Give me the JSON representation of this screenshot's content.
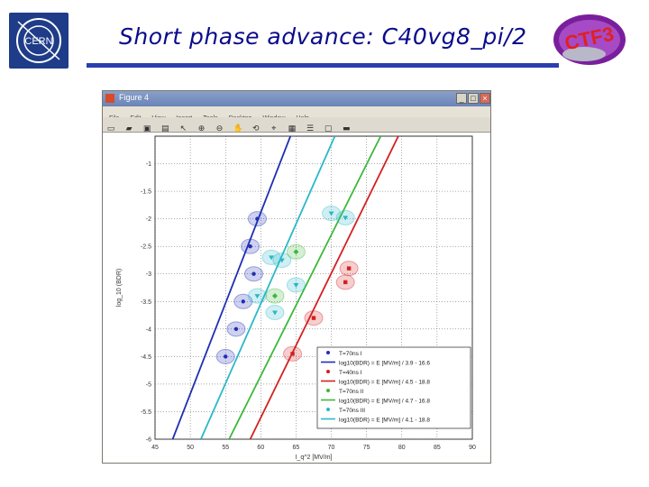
{
  "slide": {
    "title": "Short phase advance: C40vg8_pi/2",
    "cern_logo_text": "CERN",
    "ctf_logo_text": "CTF3"
  },
  "window": {
    "title": "Figure 4",
    "buttons": [
      "_",
      "□",
      "×"
    ],
    "menu": [
      "File",
      "Edit",
      "View",
      "Insert",
      "Tools",
      "Desktop",
      "Window",
      "Help"
    ],
    "toolbar_icons": [
      "new-file-icon",
      "open-icon",
      "save-icon",
      "print-icon",
      "arrow-icon",
      "zoom-in-icon",
      "zoom-out-icon",
      "pan-icon",
      "rotate-icon",
      "data-cursor-icon",
      "colorbar-icon",
      "legend-icon",
      "hide-icon",
      "show-icon"
    ]
  },
  "chart_data": {
    "type": "scatter",
    "xlabel": "I_q^2 [MV/m]",
    "ylabel": "log_10 (BDR)",
    "x_ticks": [
      "45",
      "50",
      "55",
      "60",
      "65",
      "70",
      "75",
      "80",
      "85",
      "90"
    ],
    "y_ticks": [
      "-1",
      "-1.5",
      "-2",
      "-2.5",
      "-3",
      "-3.5",
      "-4",
      "-4.5",
      "-5",
      "-5.5",
      "-6"
    ],
    "xlim": [
      45,
      90
    ],
    "ylim": [
      -6,
      -0.5
    ],
    "series": [
      {
        "name": "T=70ns I",
        "color": "#1f2fb4",
        "marker": "circle",
        "x": [
          59.5,
          58.5,
          59,
          57.5,
          56.5,
          55
        ],
        "y": [
          -2.0,
          -2.5,
          -3.0,
          -3.5,
          -4.0,
          -4.5
        ]
      },
      {
        "name": "log10(BDR) = E [MV/m] / 3.9 - 16.6",
        "color": "#1f2fb4",
        "line": [
          [
            47.5,
            -6.0
          ],
          [
            64.2,
            -0.5
          ]
        ]
      },
      {
        "name": "T=40ns I",
        "color": "#d42020",
        "marker": "square",
        "x": [
          72.5,
          72,
          67.5,
          64.5
        ],
        "y": [
          -2.9,
          -3.15,
          -3.8,
          -4.45
        ]
      },
      {
        "name": "log10(BDR) = E [MV/m] / 4.5 - 18.8",
        "color": "#d42020",
        "line": [
          [
            58.5,
            -6.0
          ],
          [
            79.5,
            -0.5
          ]
        ]
      },
      {
        "name": "T=70ns II",
        "color": "#3db83d",
        "marker": "diamond",
        "x": [
          62,
          65
        ],
        "y": [
          -3.4,
          -2.6
        ]
      },
      {
        "name": "log10(BDR) = E [MV/m] / 4.7 - 16.8",
        "color": "#3db83d",
        "line": [
          [
            55.5,
            -6.0
          ],
          [
            77.0,
            -0.5
          ]
        ]
      },
      {
        "name": "T=70ns III",
        "color": "#2ab8c8",
        "marker": "triangle",
        "x": [
          70,
          72,
          61.5,
          63,
          65,
          59.5,
          62
        ],
        "y": [
          -1.9,
          -1.98,
          -2.7,
          -2.75,
          -3.2,
          -3.4,
          -3.7
        ]
      },
      {
        "name": "log10(BDR) = E [MV/m] / 4.1 - 18.8",
        "color": "#2ab8c8",
        "line": [
          [
            51.5,
            -6.0
          ],
          [
            70.5,
            -0.5
          ]
        ]
      }
    ],
    "legend": {
      "position": "bottom-right",
      "entries": [
        "T=70ns I",
        "log10(BDR) = E [MV/m] / 3.9 - 16.6",
        "T=40ns I",
        "log10(BDR) = E [MV/m] / 4.5 - 18.8",
        "T=70ns II",
        "log10(BDR) = E [MV/m] / 4.7 - 16.8",
        "T=70ns III",
        "log10(BDR) = E [MV/m] / 4.1 - 18.8"
      ]
    },
    "grid": true
  }
}
